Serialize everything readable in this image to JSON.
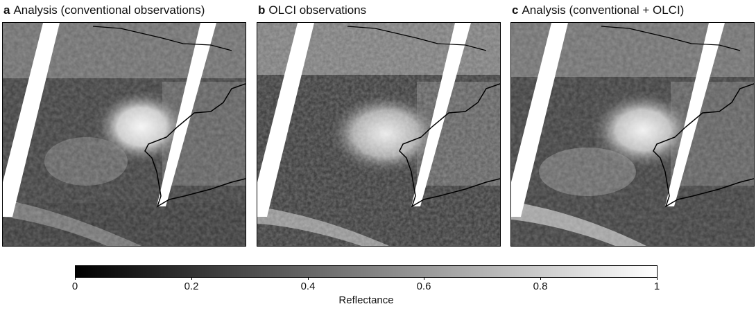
{
  "panels": [
    {
      "letter": "a",
      "title": "Analysis (conventional observations)"
    },
    {
      "letter": "b",
      "title": "OLCI observations"
    },
    {
      "letter": "c",
      "title": "Analysis (conventional + OLCI)"
    }
  ],
  "colorbar": {
    "ticks": [
      "0",
      "0.2",
      "0.4",
      "0.6",
      "0.8",
      "1"
    ],
    "label": "Reflectance",
    "range": [
      0,
      1
    ],
    "colors": {
      "low": "#000000",
      "high": "#ffffff"
    }
  }
}
